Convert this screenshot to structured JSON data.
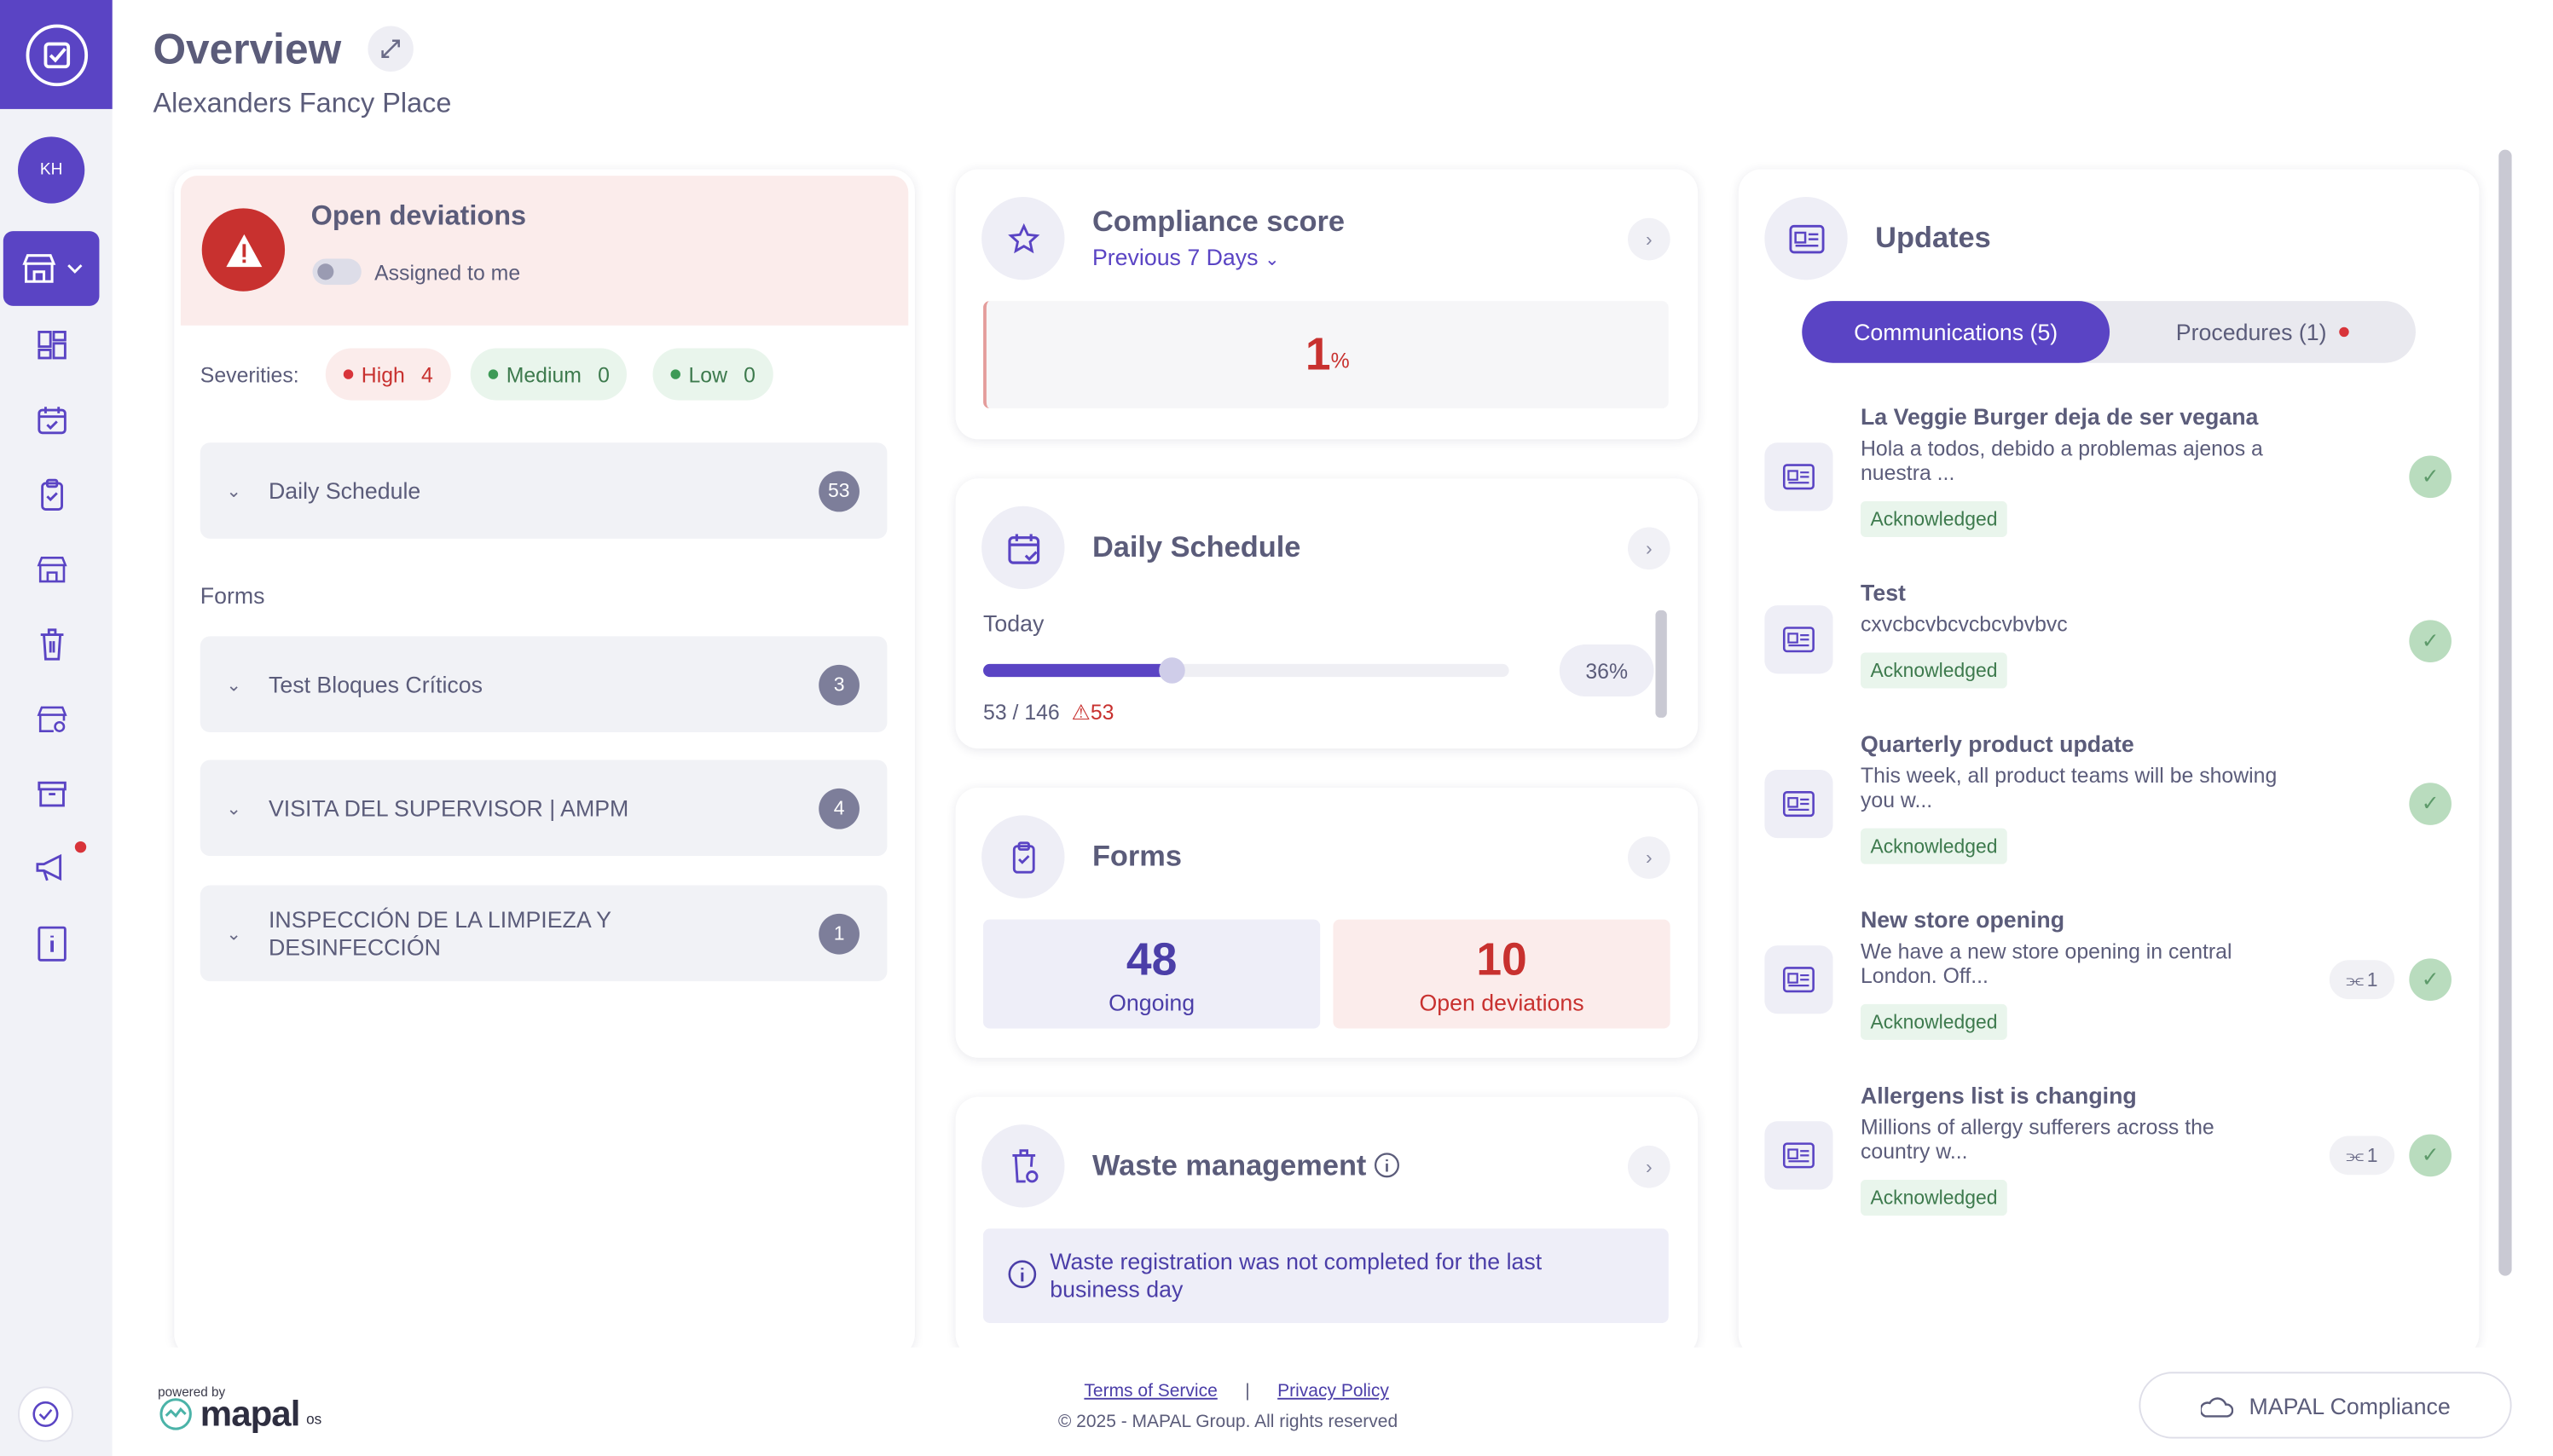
{
  "header": {
    "title": "Overview",
    "location": "Alexanders Fancy Place"
  },
  "sidebar": {
    "avatar_initials": "KH"
  },
  "open_deviations": {
    "title": "Open deviations",
    "toggle_label": "Assigned to me",
    "severities_label": "Severities:",
    "severities": [
      {
        "label": "High",
        "count": "4"
      },
      {
        "label": "Medium",
        "count": "0"
      },
      {
        "label": "Low",
        "count": "0"
      }
    ],
    "daily_schedule": {
      "label": "Daily Schedule",
      "count": "53"
    },
    "forms_label": "Forms",
    "forms": [
      {
        "label": "Test Bloques Críticos",
        "count": "3"
      },
      {
        "label": "VISITA DEL SUPERVISOR | AMPM",
        "count": "4"
      },
      {
        "label": "INSPECCIÓN DE LA LIMPIEZA Y DESINFECCIÓN",
        "count": "1"
      }
    ]
  },
  "compliance": {
    "title": "Compliance score",
    "period": "Previous 7 Days",
    "value": "1",
    "unit": "%"
  },
  "daily_schedule": {
    "title": "Daily Schedule",
    "today_label": "Today",
    "progress": 0.36,
    "percent_label": "36%",
    "done_total": "53 / 146",
    "deviations": "53"
  },
  "forms": {
    "title": "Forms",
    "ongoing_value": "48",
    "ongoing_label": "Ongoing",
    "deviations_value": "10",
    "deviations_label": "Open deviations"
  },
  "waste": {
    "title": "Waste management",
    "note": "Waste registration was not completed for the last business day"
  },
  "updates": {
    "title": "Updates",
    "tab_communications": "Communications (5)",
    "tab_procedures": "Procedures (1)",
    "items": [
      {
        "title": "La Veggie Burger deja de ser vegana",
        "desc": "Hola a todos, debido a problemas ajenos a nuestra ...",
        "status": "Acknowledged",
        "attachments": ""
      },
      {
        "title": "Test",
        "desc": "cxvcbcvbcvcbcvbvbvc",
        "status": "Acknowledged",
        "attachments": ""
      },
      {
        "title": "Quarterly product update",
        "desc": "This week, all product teams will be showing you w...",
        "status": "Acknowledged",
        "attachments": ""
      },
      {
        "title": "New store opening",
        "desc": "We have a new store opening in central London. Off...",
        "status": "Acknowledged",
        "attachments": "1"
      },
      {
        "title": "Allergens list is changing",
        "desc": "Millions of allergy sufferers across the country w...",
        "status": "Acknowledged",
        "attachments": "1"
      }
    ]
  },
  "footer": {
    "powered_by": "powered by",
    "brand": "mapal",
    "brand_suffix": "os",
    "terms": "Terms of Service",
    "separator": "|",
    "privacy": "Privacy Policy",
    "copyright": "© 2025 - MAPAL Group. All rights reserved",
    "compliance_button": "MAPAL Compliance"
  },
  "colors": {
    "accent": "#5a44c4",
    "danger": "#c8312f",
    "success": "#3d7a4d"
  }
}
